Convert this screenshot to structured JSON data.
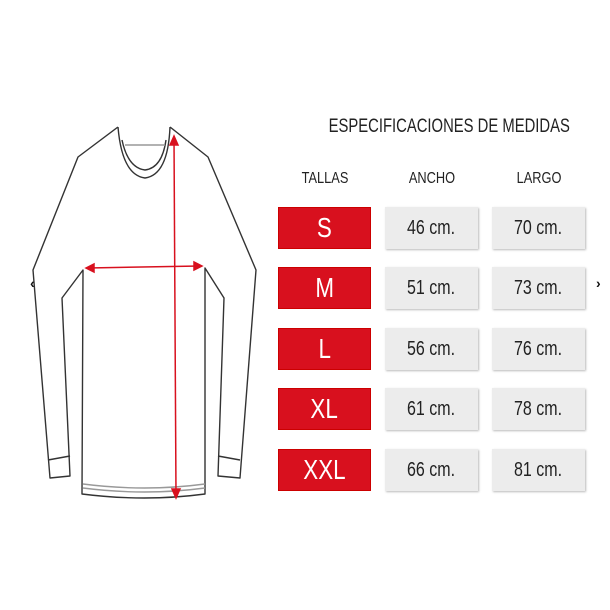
{
  "title": "ESPECIFICACIONES DE MEDIDAS",
  "headers": {
    "sizes": "TALLAS",
    "width": "ANCHO",
    "length": "LARGO"
  },
  "rows": [
    {
      "size": "S",
      "width": "46 cm.",
      "length": "70 cm."
    },
    {
      "size": "M",
      "width": "51 cm.",
      "length": "73 cm."
    },
    {
      "size": "L",
      "width": "56 cm.",
      "length": "76 cm."
    },
    {
      "size": "XL",
      "width": "61 cm.",
      "length": "78 cm."
    },
    {
      "size": "XXL",
      "width": "66 cm.",
      "length": "81 cm."
    }
  ],
  "carousel": {
    "prev_icon": "chevron-left-icon",
    "next_icon": "chevron-right-icon",
    "prev": "‹",
    "next": "›"
  },
  "colors": {
    "size_bg": "#d8101e",
    "value_bg": "#ececec",
    "measure_arrow": "#d8101e"
  }
}
